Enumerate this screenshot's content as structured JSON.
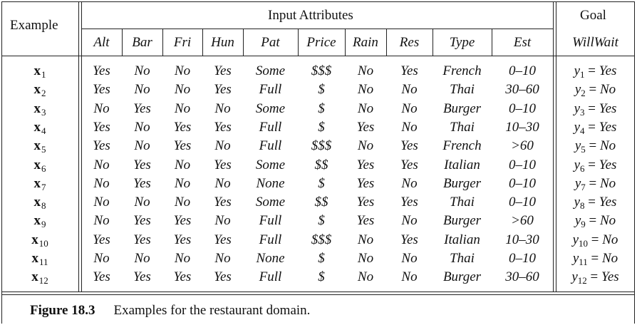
{
  "headers": {
    "example": "Example",
    "input_attributes": "Input Attributes",
    "goal": "Goal"
  },
  "columns": [
    "Alt",
    "Bar",
    "Fri",
    "Hun",
    "Pat",
    "Price",
    "Rain",
    "Res",
    "Type",
    "Est"
  ],
  "goal_column": "WillWait",
  "rows": [
    {
      "id": "1",
      "values": [
        "Yes",
        "No",
        "No",
        "Yes",
        "Some",
        "$$$",
        "No",
        "Yes",
        "French",
        "0–10"
      ],
      "goal": "Yes"
    },
    {
      "id": "2",
      "values": [
        "Yes",
        "No",
        "No",
        "Yes",
        "Full",
        "$",
        "No",
        "No",
        "Thai",
        "30–60"
      ],
      "goal": "No"
    },
    {
      "id": "3",
      "values": [
        "No",
        "Yes",
        "No",
        "No",
        "Some",
        "$",
        "No",
        "No",
        "Burger",
        "0–10"
      ],
      "goal": "Yes"
    },
    {
      "id": "4",
      "values": [
        "Yes",
        "No",
        "Yes",
        "Yes",
        "Full",
        "$",
        "Yes",
        "No",
        "Thai",
        "10–30"
      ],
      "goal": "Yes"
    },
    {
      "id": "5",
      "values": [
        "Yes",
        "No",
        "Yes",
        "No",
        "Full",
        "$$$",
        "No",
        "Yes",
        "French",
        ">60"
      ],
      "goal": "No"
    },
    {
      "id": "6",
      "values": [
        "No",
        "Yes",
        "No",
        "Yes",
        "Some",
        "$$",
        "Yes",
        "Yes",
        "Italian",
        "0–10"
      ],
      "goal": "Yes"
    },
    {
      "id": "7",
      "values": [
        "No",
        "Yes",
        "No",
        "No",
        "None",
        "$",
        "Yes",
        "No",
        "Burger",
        "0–10"
      ],
      "goal": "No"
    },
    {
      "id": "8",
      "values": [
        "No",
        "No",
        "No",
        "Yes",
        "Some",
        "$$",
        "Yes",
        "Yes",
        "Thai",
        "0–10"
      ],
      "goal": "Yes"
    },
    {
      "id": "9",
      "values": [
        "No",
        "Yes",
        "Yes",
        "No",
        "Full",
        "$",
        "Yes",
        "No",
        "Burger",
        ">60"
      ],
      "goal": "No"
    },
    {
      "id": "10",
      "values": [
        "Yes",
        "Yes",
        "Yes",
        "Yes",
        "Full",
        "$$$",
        "No",
        "Yes",
        "Italian",
        "10–30"
      ],
      "goal": "No"
    },
    {
      "id": "11",
      "values": [
        "No",
        "No",
        "No",
        "No",
        "None",
        "$",
        "No",
        "No",
        "Thai",
        "0–10"
      ],
      "goal": "No"
    },
    {
      "id": "12",
      "values": [
        "Yes",
        "Yes",
        "Yes",
        "Yes",
        "Full",
        "$",
        "No",
        "No",
        "Burger",
        "30–60"
      ],
      "goal": "Yes"
    }
  ],
  "caption": {
    "label": "Figure 18.3",
    "text": "Examples for the restaurant domain."
  }
}
